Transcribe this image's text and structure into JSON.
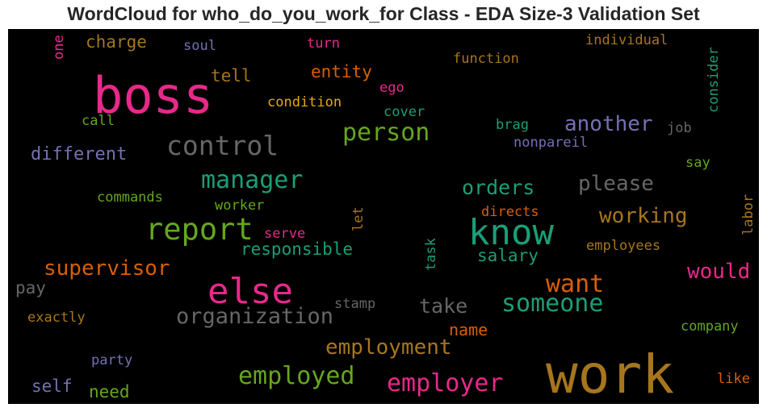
{
  "chart_data": {
    "type": "wordcloud",
    "title": "WordCloud for who_do_you_work_for Class - EDA Size-3 Validation Set",
    "background": "#000000",
    "colormap": "Dark2",
    "words": [
      {
        "text": "boss",
        "color": "#e7298a",
        "rank": 1
      },
      {
        "text": "work",
        "color": "#a6761d",
        "rank": 2
      },
      {
        "text": "else",
        "color": "#e7298a",
        "rank": 3
      },
      {
        "text": "know",
        "color": "#1b9e77",
        "rank": 4
      },
      {
        "text": "report",
        "color": "#66a61e",
        "rank": 5
      },
      {
        "text": "control",
        "color": "#666666",
        "rank": 6
      },
      {
        "text": "manager",
        "color": "#1b9e77",
        "rank": 7
      },
      {
        "text": "person",
        "color": "#66a61e",
        "rank": 8
      },
      {
        "text": "employer",
        "color": "#e7298a",
        "rank": 9
      },
      {
        "text": "someone",
        "color": "#1b9e77",
        "rank": 10
      },
      {
        "text": "organization",
        "color": "#666666",
        "rank": 11
      },
      {
        "text": "employed",
        "color": "#66a61e",
        "rank": 12
      },
      {
        "text": "want",
        "color": "#d95f02",
        "rank": 13
      },
      {
        "text": "supervisor",
        "color": "#d95f02",
        "rank": 14
      },
      {
        "text": "employment",
        "color": "#a6761d",
        "rank": 15
      },
      {
        "text": "please",
        "color": "#666666",
        "rank": 16
      },
      {
        "text": "another",
        "color": "#7570b3",
        "rank": 17
      },
      {
        "text": "working",
        "color": "#a6761d",
        "rank": 18
      },
      {
        "text": "would",
        "color": "#e7298a",
        "rank": 19
      },
      {
        "text": "orders",
        "color": "#1b9e77",
        "rank": 20
      },
      {
        "text": "take",
        "color": "#666666",
        "rank": 21
      },
      {
        "text": "different",
        "color": "#7570b3",
        "rank": 22
      },
      {
        "text": "responsible",
        "color": "#1b9e77",
        "rank": 23
      },
      {
        "text": "salary",
        "color": "#1b9e77",
        "rank": 24
      },
      {
        "text": "entity",
        "color": "#d95f02",
        "rank": 25
      },
      {
        "text": "tell",
        "color": "#a6761d",
        "rank": 26
      },
      {
        "text": "charge",
        "color": "#a6761d",
        "rank": 27
      },
      {
        "text": "self",
        "color": "#7570b3",
        "rank": 28
      },
      {
        "text": "need",
        "color": "#66a61e",
        "rank": 29
      },
      {
        "text": "name",
        "color": "#d95f02",
        "rank": 30
      },
      {
        "text": "pay",
        "color": "#666666",
        "rank": 31
      },
      {
        "text": "condition",
        "color": "#e6ab02",
        "rank": 32
      },
      {
        "text": "consider",
        "color": "#1b9e77",
        "rank": 33
      },
      {
        "text": "function",
        "color": "#a6761d",
        "rank": 34
      },
      {
        "text": "individual",
        "color": "#a6761d",
        "rank": 35
      },
      {
        "text": "commands",
        "color": "#66a61e",
        "rank": 36
      },
      {
        "text": "worker",
        "color": "#66a61e",
        "rank": 37
      },
      {
        "text": "exactly",
        "color": "#a6761d",
        "rank": 38
      },
      {
        "text": "employees",
        "color": "#a6761d",
        "rank": 39
      },
      {
        "text": "company",
        "color": "#66a61e",
        "rank": 40
      },
      {
        "text": "nonpareil",
        "color": "#7570b3",
        "rank": 41
      },
      {
        "text": "stamp",
        "color": "#666666",
        "rank": 42
      },
      {
        "text": "directs",
        "color": "#d95f02",
        "rank": 43
      },
      {
        "text": "serve",
        "color": "#e7298a",
        "rank": 44
      },
      {
        "text": "party",
        "color": "#7570b3",
        "rank": 45
      },
      {
        "text": "labor",
        "color": "#a6761d",
        "rank": 46
      },
      {
        "text": "like",
        "color": "#d95f02",
        "rank": 47
      },
      {
        "text": "task",
        "color": "#1b9e77",
        "rank": 48
      },
      {
        "text": "let",
        "color": "#a6761d",
        "rank": 49
      },
      {
        "text": "cover",
        "color": "#1b9e77",
        "rank": 50
      },
      {
        "text": "brag",
        "color": "#1b9e77",
        "rank": 51
      },
      {
        "text": "job",
        "color": "#666666",
        "rank": 52
      },
      {
        "text": "say",
        "color": "#66a61e",
        "rank": 53
      },
      {
        "text": "ego",
        "color": "#e7298a",
        "rank": 54
      },
      {
        "text": "call",
        "color": "#66a61e",
        "rank": 55
      },
      {
        "text": "soul",
        "color": "#7570b3",
        "rank": 56
      },
      {
        "text": "turn",
        "color": "#e7298a",
        "rank": 57
      },
      {
        "text": "one",
        "color": "#e7298a",
        "rank": 58
      }
    ]
  }
}
